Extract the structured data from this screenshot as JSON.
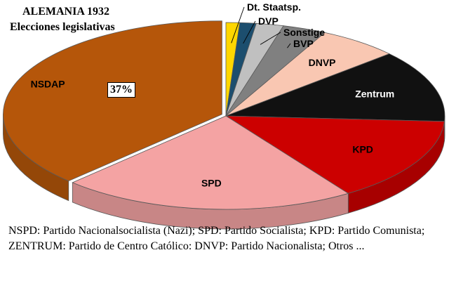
{
  "title": "ALEMANIA 1932",
  "subtitle": "Elecciones legislativas",
  "caption": "NSPD: Partido Nacionalsocialista (Nazi); SPD: Partido Socialista; KPD: Partido Comunista; ZENTRUM: Partido de Centro Católico: DNVP: Partido Nacionalista; Otros ...",
  "chart_data": {
    "type": "pie",
    "style": "3d-exploded",
    "series": [
      {
        "label": "Dt. Staatsp.",
        "value": 1.0,
        "color": "#ffd700",
        "label_color": "#000000",
        "label_outside": true
      },
      {
        "label": "DVP",
        "value": 1.2,
        "color": "#1c4e6e",
        "label_color": "#000000",
        "label_outside": true
      },
      {
        "label": "Sonstige",
        "value": 2.0,
        "color": "#c0c0c0",
        "label_color": "#000000",
        "label_outside": true
      },
      {
        "label": "BVP",
        "value": 3.2,
        "color": "#808080",
        "label_color": "#000000",
        "label_outside": true
      },
      {
        "label": "DNVP",
        "value": 5.9,
        "color": "#f9c7b2",
        "label_color": "#000000",
        "label_outside": false
      },
      {
        "label": "Zentrum",
        "value": 12.4,
        "color": "#111111",
        "label_color": "#ffffff",
        "label_outside": false
      },
      {
        "label": "KPD",
        "value": 14.5,
        "color": "#cc0000",
        "label_color": "#000000",
        "label_outside": false
      },
      {
        "label": "SPD",
        "value": 21.6,
        "color": "#f4a3a3",
        "label_color": "#000000",
        "label_outside": false
      },
      {
        "label": "NSDAP",
        "value": 37.3,
        "color": "#b5560a",
        "label_color": "#000000",
        "label_outside": false
      }
    ],
    "annotation": {
      "text": "37%",
      "target": "NSDAP"
    },
    "legend": "none"
  }
}
